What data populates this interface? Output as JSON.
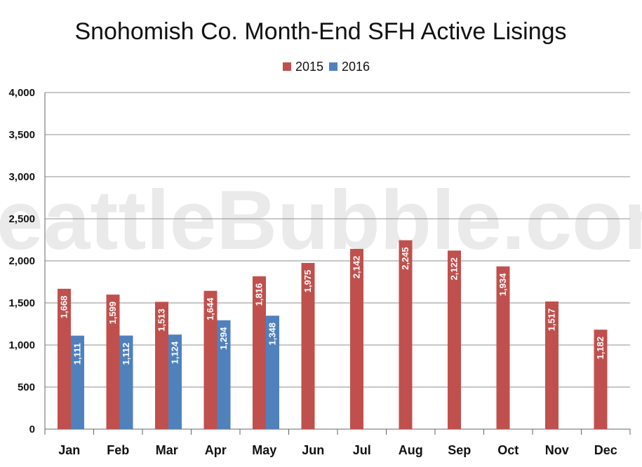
{
  "watermark": "SeattleBubble.com",
  "colors": {
    "series_2015": "#c0504d",
    "series_2016": "#4f81bd",
    "grid": "#8f8f8f",
    "axis": "#666666",
    "text": "#111111",
    "label_text": "#ffffff"
  },
  "chart_data": {
    "type": "bar",
    "title": "Snohomish Co. Month-End SFH Active Lisings",
    "xlabel": "",
    "ylabel": "",
    "categories": [
      "Jan",
      "Feb",
      "Mar",
      "Apr",
      "May",
      "Jun",
      "Jul",
      "Aug",
      "Sep",
      "Oct",
      "Nov",
      "Dec"
    ],
    "series": [
      {
        "name": "2015",
        "values": [
          1668,
          1599,
          1513,
          1644,
          1816,
          1975,
          2142,
          2245,
          2122,
          1934,
          1517,
          1182
        ],
        "data_labels": [
          "1,668",
          "1,599",
          "1,513",
          "1,644",
          "1,816",
          "1,975",
          "2,142",
          "2,245",
          "2,122",
          "1,934",
          "1,517",
          "1,182"
        ]
      },
      {
        "name": "2016",
        "values": [
          1111,
          1112,
          1124,
          1294,
          1348,
          null,
          null,
          null,
          null,
          null,
          null,
          null
        ],
        "data_labels": [
          "1,111",
          "1,112",
          "1,124",
          "1,294",
          "1,348",
          null,
          null,
          null,
          null,
          null,
          null,
          null
        ]
      }
    ],
    "ylim": [
      0,
      4000
    ],
    "y_ticks": [
      0,
      500,
      1000,
      1500,
      2000,
      2500,
      3000,
      3500,
      4000
    ],
    "y_tick_labels": [
      "0",
      "500",
      "1,000",
      "1,500",
      "2,000",
      "2,500",
      "3,000",
      "3,500",
      "4,000"
    ],
    "grid": true,
    "legend_placement": "top-center"
  }
}
